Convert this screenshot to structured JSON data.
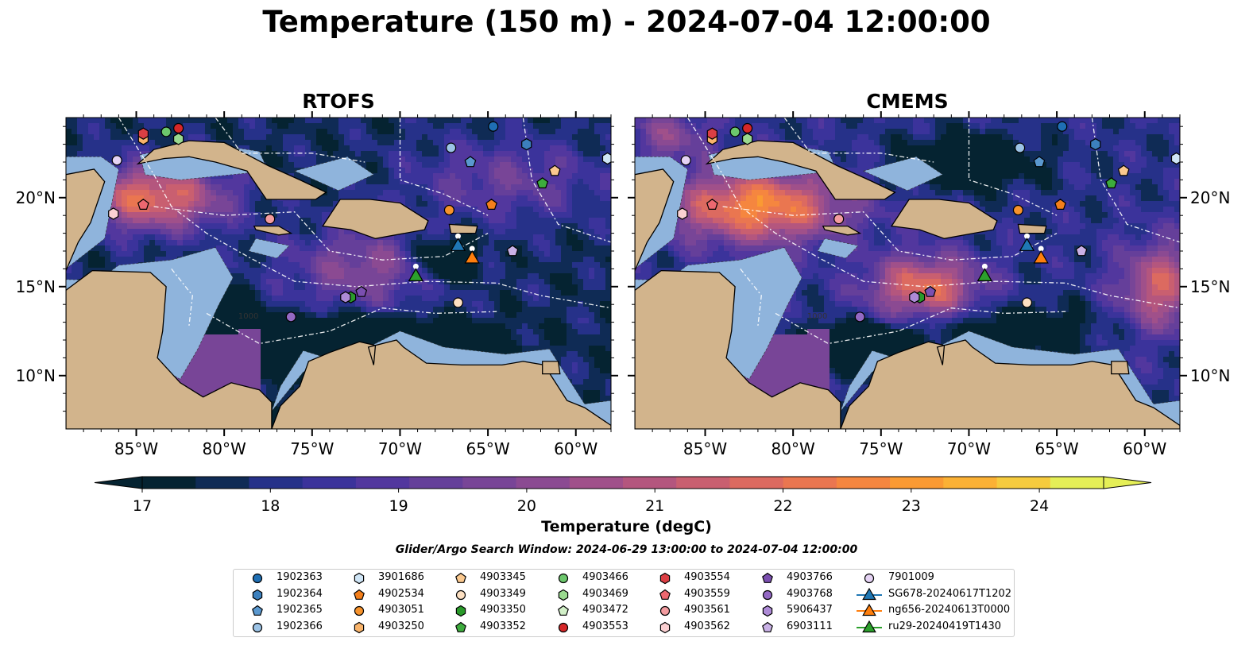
{
  "figure": {
    "title": "Temperature (150 m) - 2024-07-04 12:00:00"
  },
  "panels": [
    {
      "title": "RTOFS",
      "colormap_variant": "rtofs"
    },
    {
      "title": "CMEMS",
      "colormap_variant": "cmems"
    }
  ],
  "map_axes": {
    "lon_range": [
      -89,
      -58
    ],
    "lat_range": [
      7,
      24.5
    ],
    "lon_ticks": [
      "85°W",
      "80°W",
      "75°W",
      "70°W",
      "65°W",
      "60°W"
    ],
    "lon_tick_values": [
      -85,
      -80,
      -75,
      -70,
      -65,
      -60
    ],
    "lat_ticks": [
      "10°N",
      "15°N",
      "20°N"
    ],
    "lat_tick_values": [
      10,
      15,
      20
    ]
  },
  "colorbar": {
    "label": "Temperature (degC)",
    "ticks": [
      "17",
      "18",
      "19",
      "20",
      "21",
      "22",
      "23",
      "24"
    ],
    "tick_values": [
      17,
      18,
      19,
      20,
      21,
      22,
      23,
      24
    ],
    "range": [
      16.75,
      24.5
    ],
    "extend": "both",
    "colors": [
      "#052331",
      "#0f2b55",
      "#263189",
      "#3b339b",
      "#52379e",
      "#653f9a",
      "#784597",
      "#8b4a92",
      "#a0508a",
      "#b4567e",
      "#c95f70",
      "#dc6a60",
      "#ea7650",
      "#f5863f",
      "#fa9a33",
      "#fbb135",
      "#f6cb3e",
      "#e5ef57"
    ]
  },
  "contour_label": "1000",
  "search_window": "Glider/Argo Search Window: 2024-06-29 13:00:00 to 2024-07-04 12:00:00",
  "legend": {
    "columns": [
      [
        {
          "label": "1902363",
          "marker": "circle",
          "color": "#1f6fb4"
        },
        {
          "label": "1902364",
          "marker": "hexagon",
          "color": "#3c80bd"
        },
        {
          "label": "1902365",
          "marker": "pentagon",
          "color": "#5a98cf"
        },
        {
          "label": "1902366",
          "marker": "circle",
          "color": "#9cc3e6"
        }
      ],
      [
        {
          "label": "3901686",
          "marker": "hexagon",
          "color": "#cfe5f6"
        },
        {
          "label": "4902534",
          "marker": "pentagon",
          "color": "#f47f1b"
        },
        {
          "label": "4903051",
          "marker": "circle",
          "color": "#f7932c"
        },
        {
          "label": "4903250",
          "marker": "hexagon",
          "color": "#f9b46b"
        }
      ],
      [
        {
          "label": "4903345",
          "marker": "pentagon",
          "color": "#fbc98f"
        },
        {
          "label": "4903349",
          "marker": "circle",
          "color": "#fde0c2"
        },
        {
          "label": "4903350",
          "marker": "hexagon",
          "color": "#2a9a2a"
        },
        {
          "label": "4903352",
          "marker": "pentagon",
          "color": "#3dab3d"
        }
      ],
      [
        {
          "label": "4903466",
          "marker": "circle",
          "color": "#6cc76c"
        },
        {
          "label": "4903469",
          "marker": "hexagon",
          "color": "#9ad98f"
        },
        {
          "label": "4903472",
          "marker": "pentagon",
          "color": "#d2f0c8"
        },
        {
          "label": "4903553",
          "marker": "circle",
          "color": "#d62728"
        }
      ],
      [
        {
          "label": "4903554",
          "marker": "hexagon",
          "color": "#dc3f44"
        },
        {
          "label": "4903559",
          "marker": "pentagon",
          "color": "#ec6870"
        },
        {
          "label": "4903561",
          "marker": "circle",
          "color": "#f39ca0"
        },
        {
          "label": "4903562",
          "marker": "hexagon",
          "color": "#fbd0d2"
        }
      ],
      [
        {
          "label": "4903766",
          "marker": "pentagon",
          "color": "#7b4fb0"
        },
        {
          "label": "4903768",
          "marker": "circle",
          "color": "#9469c4"
        },
        {
          "label": "5906437",
          "marker": "hexagon",
          "color": "#ad8ad6"
        },
        {
          "label": "6903111",
          "marker": "pentagon",
          "color": "#c9b1e6"
        }
      ],
      [
        {
          "label": "7901009",
          "marker": "circle",
          "color": "#e5d3f4"
        },
        {
          "label": "SG678-20240617T1202",
          "marker": "triangle-line",
          "color": "#1f77b4"
        },
        {
          "label": "ng656-20240613T0000",
          "marker": "triangle-line",
          "color": "#ff7f0e"
        },
        {
          "label": "ru29-20240419T1430",
          "marker": "triangle-line",
          "color": "#2ca02c"
        }
      ]
    ]
  },
  "platforms": [
    {
      "id": "1902363",
      "lon": -64.7,
      "lat": 24.0,
      "marker": "circle",
      "color": "#1f6fb4"
    },
    {
      "id": "1902364",
      "lon": -62.8,
      "lat": 23.0,
      "marker": "hexagon",
      "color": "#3c80bd"
    },
    {
      "id": "1902365",
      "lon": -66.0,
      "lat": 22.0,
      "marker": "pentagon",
      "color": "#5a98cf"
    },
    {
      "id": "1902366",
      "lon": -67.1,
      "lat": 22.8,
      "marker": "circle",
      "color": "#9cc3e6"
    },
    {
      "id": "3901686",
      "lon": -58.2,
      "lat": 22.2,
      "marker": "hexagon",
      "color": "#cfe5f6"
    },
    {
      "id": "4902534",
      "lon": -64.8,
      "lat": 19.6,
      "marker": "pentagon",
      "color": "#f47f1b"
    },
    {
      "id": "4903051",
      "lon": -67.2,
      "lat": 19.3,
      "marker": "circle",
      "color": "#f7932c"
    },
    {
      "id": "4903250",
      "lon": -84.6,
      "lat": 23.3,
      "marker": "hexagon",
      "color": "#f9b46b"
    },
    {
      "id": "4903345",
      "lon": -61.2,
      "lat": 21.5,
      "marker": "pentagon",
      "color": "#fbc98f"
    },
    {
      "id": "4903349",
      "lon": -66.7,
      "lat": 14.1,
      "marker": "circle",
      "color": "#fde0c2"
    },
    {
      "id": "4903350",
      "lon": -72.8,
      "lat": 14.4,
      "marker": "hexagon",
      "color": "#2a9a2a"
    },
    {
      "id": "4903352",
      "lon": -61.9,
      "lat": 20.8,
      "marker": "pentagon",
      "color": "#3dab3d"
    },
    {
      "id": "4903466",
      "lon": -83.3,
      "lat": 23.7,
      "marker": "circle",
      "color": "#6cc76c"
    },
    {
      "id": "4903469",
      "lon": -82.6,
      "lat": 23.3,
      "marker": "hexagon",
      "color": "#9ad98f"
    },
    {
      "id": "4903553",
      "lon": -82.6,
      "lat": 23.9,
      "marker": "circle",
      "color": "#d62728"
    },
    {
      "id": "4903554",
      "lon": -84.6,
      "lat": 23.6,
      "marker": "hexagon",
      "color": "#dc3f44"
    },
    {
      "id": "4903559",
      "lon": -84.6,
      "lat": 19.6,
      "marker": "pentagon",
      "color": "#ec6870"
    },
    {
      "id": "4903561",
      "lon": -77.4,
      "lat": 18.8,
      "marker": "circle",
      "color": "#f39ca0"
    },
    {
      "id": "4903562",
      "lon": -86.3,
      "lat": 19.1,
      "marker": "hexagon",
      "color": "#fbd0d2"
    },
    {
      "id": "4903766",
      "lon": -72.2,
      "lat": 14.7,
      "marker": "pentagon",
      "color": "#7b4fb0"
    },
    {
      "id": "4903768",
      "lon": -76.2,
      "lat": 13.3,
      "marker": "circle",
      "color": "#9469c4"
    },
    {
      "id": "5906437",
      "lon": -73.1,
      "lat": 14.4,
      "marker": "hexagon",
      "color": "#ad8ad6"
    },
    {
      "id": "6903111",
      "lon": -63.6,
      "lat": 17.0,
      "marker": "pentagon",
      "color": "#c9b1e6"
    },
    {
      "id": "7901009",
      "lon": -86.1,
      "lat": 22.1,
      "marker": "circle",
      "color": "#e5d3f4"
    },
    {
      "id": "SG678-20240617T1202",
      "lon": -66.7,
      "lat": 17.3,
      "marker": "triangle",
      "color": "#1f77b4"
    },
    {
      "id": "ng656-20240613T0000",
      "lon": -65.9,
      "lat": 16.6,
      "marker": "triangle",
      "color": "#ff7f0e"
    },
    {
      "id": "ru29-20240419T1430",
      "lon": -69.1,
      "lat": 15.6,
      "marker": "triangle",
      "color": "#2ca02c"
    }
  ],
  "map_colors": {
    "land": "#d2b48c",
    "shelf": "#8fb4dc",
    "deep_cold": "#052331"
  }
}
